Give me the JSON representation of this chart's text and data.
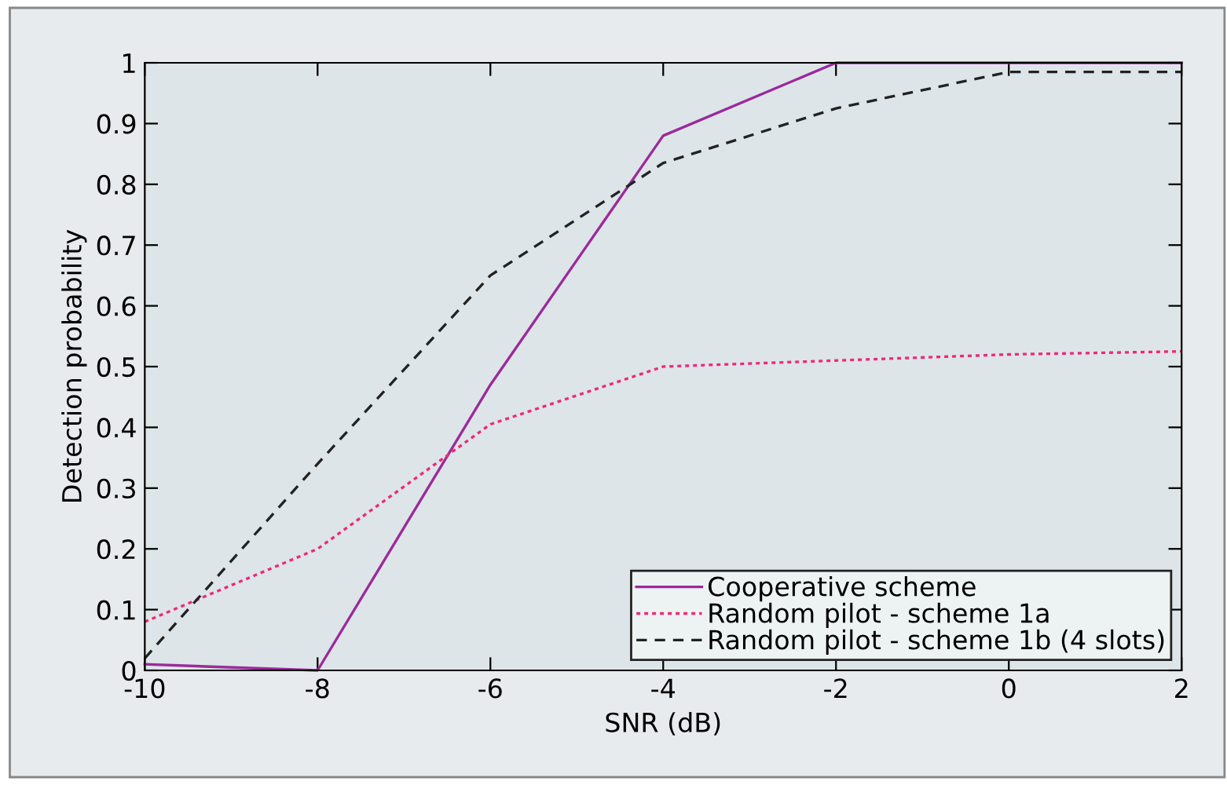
{
  "chart_data": {
    "type": "line",
    "xlabel": "SNR (dB)",
    "ylabel": "Detection probability",
    "x": [
      -10,
      -8,
      -6,
      -4,
      -2,
      0,
      2
    ],
    "series": [
      {
        "name": "Cooperative scheme",
        "color": "#9b2a9b",
        "line_style": "solid",
        "values": [
          0.01,
          0.0,
          0.47,
          0.88,
          1.0,
          1.0,
          1.0
        ]
      },
      {
        "name": "Random pilot - scheme 1a",
        "color": "#f0287a",
        "line_style": "dotted",
        "values": [
          0.08,
          0.2,
          0.405,
          0.5,
          0.51,
          0.52,
          0.525
        ]
      },
      {
        "name": "Random pilot - scheme 1b (4 slots)",
        "color": "#222222",
        "line_style": "dashed",
        "values": [
          0.02,
          0.34,
          0.65,
          0.835,
          0.925,
          0.985,
          0.985
        ]
      }
    ],
    "xlim": [
      -10,
      2
    ],
    "xticks": [
      -10,
      -8,
      -6,
      -4,
      -2,
      0,
      2
    ],
    "ylim": [
      0,
      1
    ],
    "yticks": [
      0,
      0.1,
      0.2,
      0.3,
      0.4,
      0.5,
      0.6,
      0.7,
      0.8,
      0.9,
      1
    ],
    "grid": false,
    "legend": "bottom right",
    "marker": "none"
  }
}
